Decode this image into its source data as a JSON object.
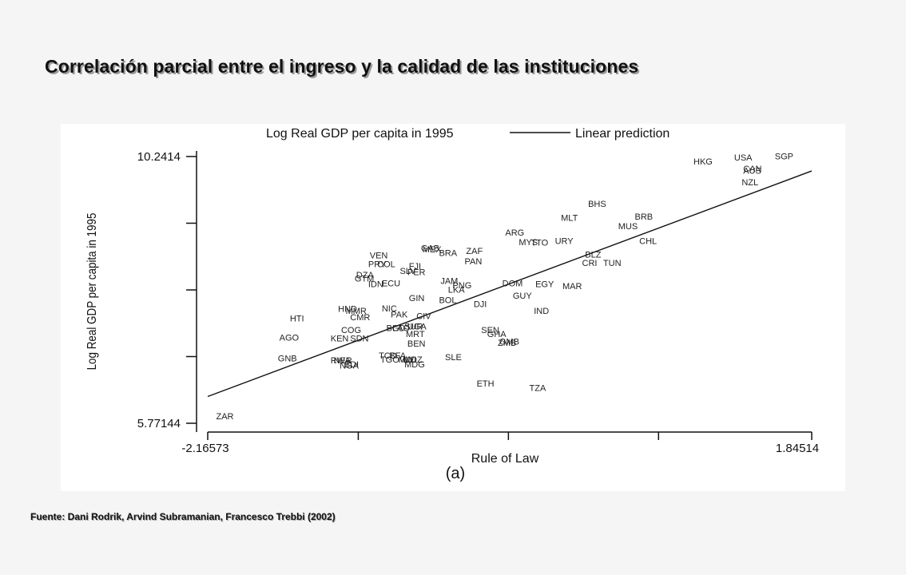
{
  "slide": {
    "title": "Correlación parcial entre el ingreso y la calidad de las instituciones",
    "source": "Fuente: Dani Rodrik, Arvind Subramanian, Francesco Trebbi (2002)"
  },
  "chart_data": {
    "type": "scatter",
    "xlabel": "Rule of Law",
    "ylabel": "Log Real GDP per capita in 1995",
    "panel_label": "(a)",
    "xlim": [
      -2.16573,
      1.84514
    ],
    "ylim": [
      5.77144,
      10.2414
    ],
    "x_tick_labels": [
      "-2.16573",
      "1.84514"
    ],
    "y_tick_labels": [
      "10.2414",
      "5.77144"
    ],
    "x_minor_ticks": [
      -1.166,
      -0.169,
      0.828
    ],
    "y_minor_ticks": [
      9.124,
      8.006,
      6.889
    ],
    "legend": [
      {
        "label": "Log Real GDP per capita in 1995",
        "marker": "text"
      },
      {
        "label": "Linear prediction",
        "marker": "line"
      }
    ],
    "linear_prediction": {
      "x": [
        -2.16573,
        1.84514
      ],
      "y": [
        6.22,
        10.0
      ]
    },
    "series": [
      {
        "points": [
          {
            "label": "ZAR",
            "x": -2.11,
            "y": 5.89
          },
          {
            "label": "GNB",
            "x": -1.7,
            "y": 6.86
          },
          {
            "label": "AGO",
            "x": -1.69,
            "y": 7.21
          },
          {
            "label": "HTI",
            "x": -1.62,
            "y": 7.53
          },
          {
            "label": "RWA",
            "x": -1.35,
            "y": 6.83
          },
          {
            "label": "NER",
            "x": -1.33,
            "y": 6.83
          },
          {
            "label": "BDI",
            "x": -1.26,
            "y": 6.76
          },
          {
            "label": "NGA",
            "x": -1.29,
            "y": 6.74
          },
          {
            "label": "KEN",
            "x": -1.35,
            "y": 7.2
          },
          {
            "label": "SDN",
            "x": -1.22,
            "y": 7.2
          },
          {
            "label": "COG",
            "x": -1.28,
            "y": 7.34
          },
          {
            "label": "CMR",
            "x": -1.22,
            "y": 7.55
          },
          {
            "label": "HND",
            "x": -1.3,
            "y": 7.69
          },
          {
            "label": "MMR",
            "x": -1.25,
            "y": 7.66
          },
          {
            "label": "NIC",
            "x": -1.01,
            "y": 7.7
          },
          {
            "label": "PAK",
            "x": -0.95,
            "y": 7.6
          },
          {
            "label": "BGD",
            "x": -0.98,
            "y": 7.37
          },
          {
            "label": "LAO",
            "x": -0.94,
            "y": 7.37
          },
          {
            "label": "SUR",
            "x": -0.86,
            "y": 7.4
          },
          {
            "label": "UGA",
            "x": -0.84,
            "y": 7.4
          },
          {
            "label": "CIV",
            "x": -0.78,
            "y": 7.57
          },
          {
            "label": "MRT",
            "x": -0.85,
            "y": 7.27
          },
          {
            "label": "BEN",
            "x": -0.84,
            "y": 7.11
          },
          {
            "label": "TCD",
            "x": -1.03,
            "y": 6.91
          },
          {
            "label": "BFA",
            "x": -0.96,
            "y": 6.91
          },
          {
            "label": "TGO",
            "x": -1.02,
            "y": 6.84
          },
          {
            "label": "MLI",
            "x": -0.9,
            "y": 6.84
          },
          {
            "label": "MWI",
            "x": -0.9,
            "y": 6.84
          },
          {
            "label": "MOZ",
            "x": -0.87,
            "y": 6.84
          },
          {
            "label": "MDG",
            "x": -0.86,
            "y": 6.76
          },
          {
            "label": "SLE",
            "x": -0.59,
            "y": 6.88
          },
          {
            "label": "ETH",
            "x": -0.38,
            "y": 6.44
          },
          {
            "label": "TZA",
            "x": -0.03,
            "y": 6.37
          },
          {
            "label": "SEN",
            "x": -0.35,
            "y": 7.34
          },
          {
            "label": "GHA",
            "x": -0.31,
            "y": 7.27
          },
          {
            "label": "GMB",
            "x": -0.23,
            "y": 7.14
          },
          {
            "label": "ZMB",
            "x": -0.24,
            "y": 7.12
          },
          {
            "label": "GIN",
            "x": -0.83,
            "y": 7.87
          },
          {
            "label": "BOL",
            "x": -0.63,
            "y": 7.84
          },
          {
            "label": "LKA",
            "x": -0.57,
            "y": 8.01
          },
          {
            "label": "PNG",
            "x": -0.54,
            "y": 8.09
          },
          {
            "label": "JAM",
            "x": -0.62,
            "y": 8.16
          },
          {
            "label": "DJI",
            "x": -0.4,
            "y": 7.77
          },
          {
            "label": "DOM",
            "x": -0.21,
            "y": 8.12
          },
          {
            "label": "EGY",
            "x": 0.01,
            "y": 8.11
          },
          {
            "label": "GUY",
            "x": -0.14,
            "y": 7.91
          },
          {
            "label": "IND",
            "x": 0.0,
            "y": 7.66
          },
          {
            "label": "MAR",
            "x": 0.19,
            "y": 8.07
          },
          {
            "label": "DZA",
            "x": -1.18,
            "y": 8.26
          },
          {
            "label": "GTM",
            "x": -1.19,
            "y": 8.2
          },
          {
            "label": "IDN",
            "x": -1.1,
            "y": 8.11
          },
          {
            "label": "ECU",
            "x": -1.01,
            "y": 8.12
          },
          {
            "label": "SLV",
            "x": -0.89,
            "y": 8.33
          },
          {
            "label": "PER",
            "x": -0.84,
            "y": 8.31
          },
          {
            "label": "FJI",
            "x": -0.83,
            "y": 8.41
          },
          {
            "label": "PRY",
            "x": -1.1,
            "y": 8.44
          },
          {
            "label": "COL",
            "x": -1.04,
            "y": 8.44
          },
          {
            "label": "VEN",
            "x": -1.09,
            "y": 8.59
          },
          {
            "label": "GAB",
            "x": -0.75,
            "y": 8.71
          },
          {
            "label": "MEX",
            "x": -0.74,
            "y": 8.69
          },
          {
            "label": "BRA",
            "x": -0.63,
            "y": 8.63
          },
          {
            "label": "ZAF",
            "x": -0.45,
            "y": 8.66
          },
          {
            "label": "PAN",
            "x": -0.46,
            "y": 8.49
          },
          {
            "label": "ARG",
            "x": -0.19,
            "y": 8.97
          },
          {
            "label": "MYS",
            "x": -0.1,
            "y": 8.81
          },
          {
            "label": "TTO",
            "x": -0.02,
            "y": 8.8
          },
          {
            "label": "URY",
            "x": 0.14,
            "y": 8.83
          },
          {
            "label": "BLZ",
            "x": 0.34,
            "y": 8.6
          },
          {
            "label": "CRI",
            "x": 0.32,
            "y": 8.46
          },
          {
            "label": "TUN",
            "x": 0.46,
            "y": 8.46
          },
          {
            "label": "MLT",
            "x": 0.18,
            "y": 9.22
          },
          {
            "label": "BHS",
            "x": 0.36,
            "y": 9.45
          },
          {
            "label": "MUS",
            "x": 0.56,
            "y": 9.08
          },
          {
            "label": "BRB",
            "x": 0.67,
            "y": 9.24
          },
          {
            "label": "CHL",
            "x": 0.7,
            "y": 8.83
          },
          {
            "label": "HKG",
            "x": 1.06,
            "y": 10.16
          },
          {
            "label": "USA",
            "x": 1.33,
            "y": 10.23
          },
          {
            "label": "SGP",
            "x": 1.6,
            "y": 10.25
          },
          {
            "label": "CAN",
            "x": 1.39,
            "y": 10.04
          },
          {
            "label": "AUS",
            "x": 1.39,
            "y": 10.01
          },
          {
            "label": "NZL",
            "x": 1.38,
            "y": 9.81
          }
        ]
      }
    ]
  }
}
